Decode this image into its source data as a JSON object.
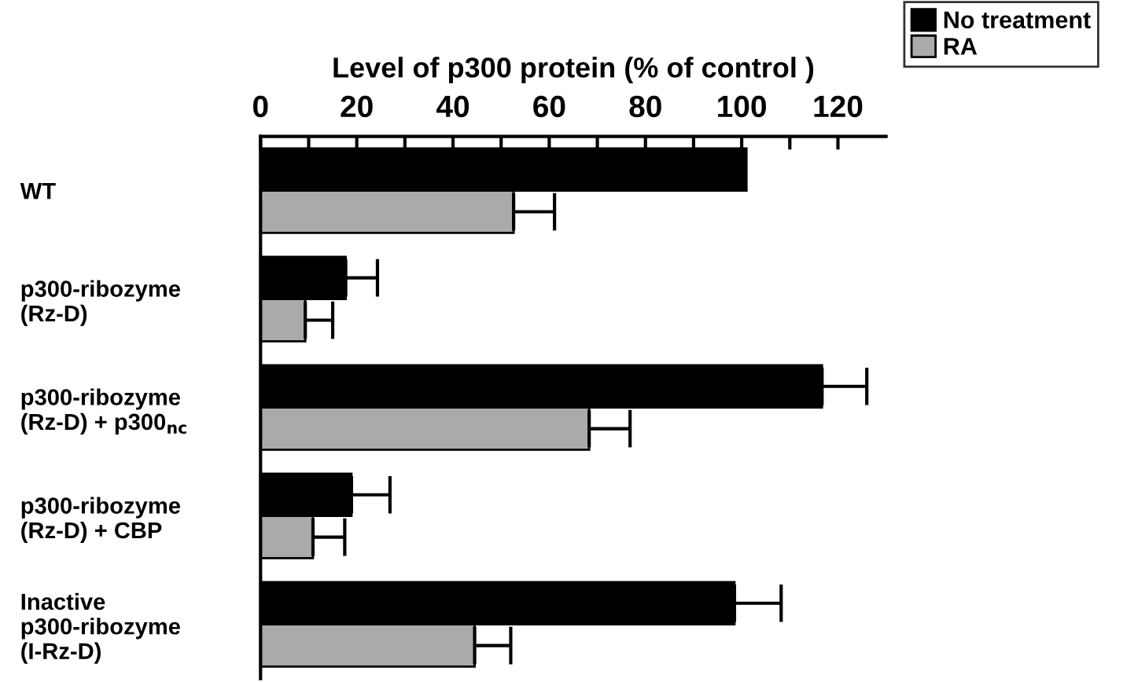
{
  "chart_data": {
    "type": "bar",
    "orientation": "horizontal",
    "xlabel": "Level of p300 protein (% of control )",
    "categories": [
      "WT",
      "p300-ribozyme\n(Rz-D)",
      "p300-ribozyme\n(Rz-D) + p300$_{nc}$",
      "p300-ribozyme\n(Rz-D) + CBP",
      "Inactive\np300-ribozyme\n(I-Rz-D)"
    ],
    "series": [
      {
        "name": "No treatment",
        "color": "#000000",
        "values": [
          101,
          17.7,
          116.7,
          18.9,
          98.5
        ],
        "errors": [
          null,
          6.6,
          9.3,
          8,
          9.7
        ]
      },
      {
        "name": "RA",
        "color": "#aaaaaa",
        "values": [
          52.6,
          9.3,
          68.3,
          10.9,
          44.5
        ],
        "errors": [
          8.5,
          5.7,
          8.5,
          6.6,
          7.5
        ]
      }
    ],
    "xlim": [
      0,
      130
    ],
    "xticks": [
      0,
      {
        "value": 10,
        "label": null
      },
      20,
      {
        "value": 30,
        "label": null
      },
      40,
      {
        "value": 50,
        "label": null
      },
      60,
      {
        "value": 70,
        "label": null
      },
      80,
      {
        "value": 90,
        "label": null
      },
      100,
      {
        "value": 110,
        "label": null
      },
      120
    ],
    "grid": false,
    "legend": "top right"
  }
}
